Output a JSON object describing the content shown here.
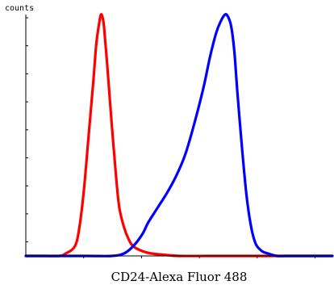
{
  "chart_data": {
    "type": "line",
    "title": "",
    "xlabel": "CD24-Alexa Fluor 488",
    "ylabel": "counts",
    "xlim": [
      0,
      10
    ],
    "ylim": [
      0,
      100
    ],
    "grid": false,
    "legend": "none",
    "series": [
      {
        "color": "#ff0000",
        "x": [
          0.0,
          0.6,
          1.1,
          1.3,
          1.6,
          1.75,
          1.9,
          2.05,
          2.2,
          2.3,
          2.4,
          2.45,
          2.5,
          2.55,
          2.65,
          2.8,
          2.95,
          3.05,
          3.2,
          3.35,
          3.5,
          3.8,
          4.1,
          4.5,
          5.0,
          6.0,
          7.0,
          8.0,
          10.0
        ],
        "y": [
          0,
          0,
          0,
          1,
          4,
          12,
          28,
          50,
          72,
          88,
          97,
          100,
          99,
          95,
          80,
          55,
          32,
          20,
          12,
          7,
          4,
          2,
          1,
          0.5,
          0,
          0,
          0,
          0,
          0
        ]
      },
      {
        "color": "#0000ff",
        "x": [
          0.0,
          2.0,
          2.8,
          3.2,
          3.5,
          3.8,
          4.0,
          4.3,
          4.6,
          4.9,
          5.2,
          5.5,
          5.8,
          6.0,
          6.2,
          6.35,
          6.5,
          6.6,
          6.7,
          6.8,
          6.9,
          7.05,
          7.2,
          7.35,
          7.5,
          7.7,
          7.9,
          8.2,
          8.5,
          10.0
        ],
        "y": [
          0,
          0,
          0,
          1,
          4,
          9,
          14,
          20,
          26,
          33,
          42,
          55,
          70,
          82,
          92,
          97,
          100,
          99,
          95,
          85,
          68,
          45,
          25,
          12,
          5,
          2,
          1,
          0,
          0,
          0
        ]
      }
    ]
  }
}
